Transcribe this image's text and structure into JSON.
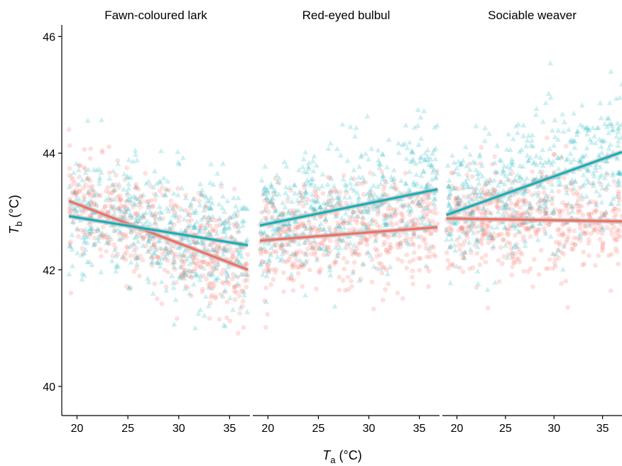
{
  "chart_data": {
    "type": "scatter",
    "layout": "facets",
    "xlabel": {
      "symbol": "T",
      "sub": "a",
      "unit": " (°C)"
    },
    "ylabel": {
      "symbol": "T",
      "sub": "b",
      "unit": " (°C)"
    },
    "xlim": [
      18.5,
      37
    ],
    "ylim": [
      39.5,
      46.2
    ],
    "x_ticks": [
      20,
      25,
      30,
      35
    ],
    "y_ticks": [
      40,
      42,
      44,
      46
    ],
    "grid": false,
    "legend": "none",
    "colors": {
      "red": "#F8766D",
      "teal": "#1FB8BF",
      "red_line": "#F06F66",
      "teal_line": "#18AEB6"
    },
    "facets": [
      {
        "title": "Fawn-coloured lark",
        "series": [
          {
            "color": "red",
            "marker": "circle",
            "trend": {
              "x": [
                19.2,
                36.8
              ],
              "y": [
                43.18,
                42.0
              ]
            }
          },
          {
            "color": "teal",
            "marker": "triangle",
            "trend": {
              "x": [
                19.2,
                36.8
              ],
              "y": [
                42.92,
                42.42
              ]
            }
          }
        ]
      },
      {
        "title": "Red-eyed bulbul",
        "series": [
          {
            "color": "red",
            "marker": "circle",
            "trend": {
              "x": [
                19.2,
                36.8
              ],
              "y": [
                42.5,
                42.73
              ]
            }
          },
          {
            "color": "teal",
            "marker": "triangle",
            "trend": {
              "x": [
                19.2,
                36.8
              ],
              "y": [
                42.76,
                43.38
              ]
            }
          }
        ]
      },
      {
        "title": "Sociable weaver",
        "series": [
          {
            "color": "red",
            "marker": "circle",
            "trend": {
              "x": [
                18.9,
                37.0
              ],
              "y": [
                42.88,
                42.83
              ]
            }
          },
          {
            "color": "teal",
            "marker": "triangle",
            "trend": {
              "x": [
                18.9,
                37.0
              ],
              "y": [
                42.94,
                44.02
              ]
            }
          }
        ]
      }
    ]
  }
}
